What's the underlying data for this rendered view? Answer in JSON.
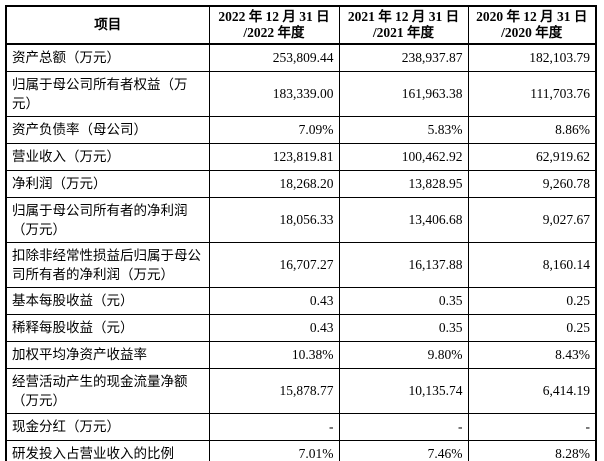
{
  "colors": {
    "border": "#000000",
    "text": "#000000",
    "background": "#ffffff"
  },
  "table": {
    "header": {
      "item_label": "项目",
      "periods": [
        {
          "line1": "2022 年 12 月 31 日",
          "line2": "/2022 年度"
        },
        {
          "line1": "2021 年 12 月 31 日",
          "line2": "/2021 年度"
        },
        {
          "line1": "2020 年 12 月 31 日",
          "line2": "/2020 年度"
        }
      ]
    },
    "rows": [
      {
        "label": "资产总额（万元）",
        "values": [
          "253,809.44",
          "238,937.87",
          "182,103.79"
        ]
      },
      {
        "label": "归属于母公司所有者权益（万元）",
        "values": [
          "183,339.00",
          "161,963.38",
          "111,703.76"
        ]
      },
      {
        "label": "资产负债率（母公司）",
        "values": [
          "7.09%",
          "5.83%",
          "8.86%"
        ]
      },
      {
        "label": "营业收入（万元）",
        "values": [
          "123,819.81",
          "100,462.92",
          "62,919.62"
        ]
      },
      {
        "label": "净利润（万元）",
        "values": [
          "18,268.20",
          "13,828.95",
          "9,260.78"
        ]
      },
      {
        "label": "归属于母公司所有者的净利润（万元）",
        "values": [
          "18,056.33",
          "13,406.68",
          "9,027.67"
        ]
      },
      {
        "label": "扣除非经常性损益后归属于母公司所有者的净利润（万元）",
        "values": [
          "16,707.27",
          "16,137.88",
          "8,160.14"
        ]
      },
      {
        "label": "基本每股收益（元）",
        "values": [
          "0.43",
          "0.35",
          "0.25"
        ]
      },
      {
        "label": "稀释每股收益（元）",
        "values": [
          "0.43",
          "0.35",
          "0.25"
        ]
      },
      {
        "label": "加权平均净资产收益率",
        "values": [
          "10.38%",
          "9.80%",
          "8.43%"
        ]
      },
      {
        "label": "经营活动产生的现金流量净额（万元）",
        "values": [
          "15,878.77",
          "10,135.74",
          "6,414.19"
        ]
      },
      {
        "label": "现金分红（万元）",
        "values": [
          "-",
          "-",
          "-"
        ]
      },
      {
        "label": "研发投入占营业收入的比例",
        "values": [
          "7.01%",
          "7.46%",
          "8.28%"
        ]
      }
    ]
  }
}
